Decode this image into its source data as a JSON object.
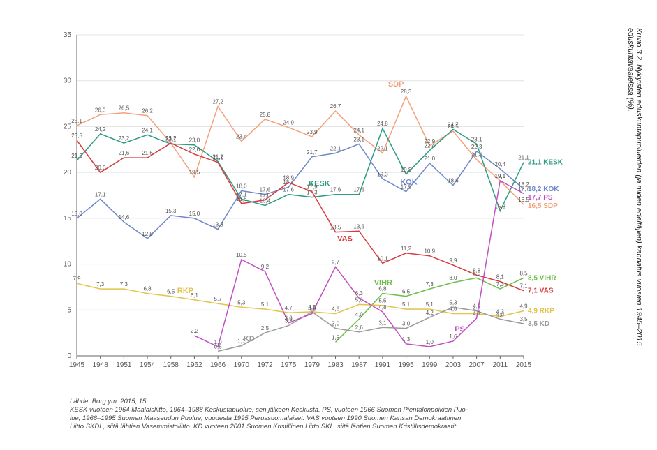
{
  "caption": "Kuvio 3.2. Nykyisten eduskuntapuolueiden (ja niiden edeltäjien) kannatus vuosien 1945–2015 eduskuntavaaleissa (%).",
  "footnotes": {
    "source": "Lähde: Borg ym. 2015, 15.",
    "line1": "KESK vuoteen 1964 Maalaisliitto, 1964–1988 Keskustapuolue, sen jälkeen Keskusta. PS, vuoteen 1966 Suomen Pientalonpoikien Puo-",
    "line2": "lue, 1966–1995 Suomen Maaseudun Puolue, vuodesta 1995 Perussuomalaiset. VAS vuoteen 1990 Suomen Kansan Demokraattinen",
    "line3": "Liitto SKDL, siitä lähtien Vasemmistoliitto. KD vuoteen 2001 Suomen Kristillinen Liitto SKL, siitä lähtien Suomen Kristillisdemokraatit."
  },
  "chart": {
    "type": "line",
    "background_color": "#ffffff",
    "grid_color": "#dfe3e6",
    "axis_color": "#666666",
    "tick_font_size": 10,
    "value_font_size": 8,
    "years": [
      1945,
      1948,
      1951,
      1954,
      1958,
      1962,
      1966,
      1970,
      1972,
      1975,
      1979,
      1983,
      1987,
      1991,
      1995,
      1999,
      2003,
      2007,
      2011,
      2015
    ],
    "ylim": [
      0,
      35
    ],
    "ytick_step": 5,
    "y_ticks": [
      0,
      5,
      10,
      15,
      20,
      25,
      30,
      35
    ],
    "line_width": 1.5,
    "series": [
      {
        "key": "SDP",
        "label": "SDP",
        "color": "#f4a07a",
        "values": [
          25.1,
          26.3,
          26.5,
          26.2,
          23.2,
          19.5,
          27.2,
          23.4,
          25.8,
          24.9,
          23.9,
          26.7,
          24.1,
          22.1,
          28.3,
          22.9,
          24.5,
          21.4,
          19.1,
          16.5
        ],
        "end_label": "16,5  SDP",
        "inline_labels": [
          {
            "at": 1995,
            "text": "SDP",
            "dy": -14
          }
        ]
      },
      {
        "key": "KESK",
        "label": "KESK",
        "color": "#2e9b82",
        "values": [
          21.3,
          24.2,
          23.2,
          24.1,
          23.1,
          23.0,
          21.2,
          17.1,
          16.4,
          17.6,
          17.3,
          17.6,
          17.6,
          24.8,
          19.8,
          22.4,
          24.7,
          23.1,
          15.8,
          21.1
        ],
        "end_label": "21,1  KESK",
        "inline_labels": [
          {
            "at": 1983,
            "text": "KESK",
            "dy": -12
          }
        ]
      },
      {
        "key": "KOK",
        "label": "KOK",
        "color": "#6d87c9",
        "values": [
          15.0,
          17.1,
          14.6,
          12.8,
          15.3,
          15.0,
          13.8,
          18.0,
          17.6,
          18.4,
          21.7,
          22.1,
          23.1,
          19.3,
          17.9,
          21.0,
          18.6,
          22.3,
          20.4,
          18.2
        ],
        "end_label": "18,2  KOK",
        "inline_labels": [
          {
            "at": 1997,
            "text": "KOK",
            "dy": -10
          }
        ]
      },
      {
        "key": "VAS",
        "label": "VAS",
        "color": "#d93a3a",
        "values": [
          23.5,
          20.0,
          21.6,
          21.6,
          23.2,
          22.0,
          21.1,
          16.6,
          17.0,
          18.9,
          17.9,
          13.5,
          13.6,
          10.1,
          11.2,
          10.9,
          9.9,
          8.8,
          8.1,
          7.1
        ],
        "end_label": "7,1  VAS",
        "inline_labels": [
          {
            "at": 1987,
            "text": "VAS",
            "dy": 14
          }
        ]
      },
      {
        "key": "VIHR",
        "label": "VIHR",
        "color": "#6cbf4a",
        "values": [
          null,
          null,
          null,
          null,
          null,
          null,
          null,
          null,
          null,
          null,
          null,
          1.5,
          4.0,
          6.8,
          6.5,
          7.3,
          8.0,
          8.5,
          7.3,
          8.5
        ],
        "end_label": "8,5  VIHR",
        "inline_labels": [
          {
            "at": 1993,
            "text": "VIHR",
            "dy": -12
          }
        ]
      },
      {
        "key": "RKP",
        "label": "RKP",
        "color": "#e2c44a",
        "values": [
          7.9,
          7.3,
          7.3,
          6.8,
          6.5,
          6.1,
          5.7,
          5.3,
          5.1,
          4.7,
          4.8,
          4.6,
          5.6,
          5.5,
          5.1,
          5.1,
          4.6,
          4.6,
          4.3,
          4.9
        ],
        "end_label": "4,9  RKP",
        "inline_labels": [
          {
            "at": 1962,
            "text": "RKP",
            "dy": -10
          }
        ]
      },
      {
        "key": "KD",
        "label": "KD",
        "color": "#9a9a9a",
        "values": [
          null,
          null,
          null,
          null,
          null,
          null,
          0.5,
          1.1,
          2.5,
          3.3,
          4.8,
          3.0,
          2.6,
          3.1,
          3.0,
          4.2,
          5.3,
          4.9,
          4.0,
          3.5
        ],
        "end_label": "3,5  KD",
        "inline_labels": [
          {
            "at": 1972,
            "text": "KD",
            "dy": 12
          }
        ]
      },
      {
        "key": "PS",
        "label": "PS",
        "color": "#c24fc2",
        "values": [
          null,
          null,
          null,
          null,
          null,
          2.2,
          1.0,
          10.5,
          9.2,
          3.6,
          4.6,
          9.7,
          6.3,
          4.8,
          1.3,
          1.0,
          1.6,
          4.1,
          19.1,
          17.7
        ],
        "end_label": "17,7  PS",
        "inline_labels": [
          {
            "at": 2005,
            "text": "PS",
            "dy": -14
          }
        ]
      }
    ]
  }
}
